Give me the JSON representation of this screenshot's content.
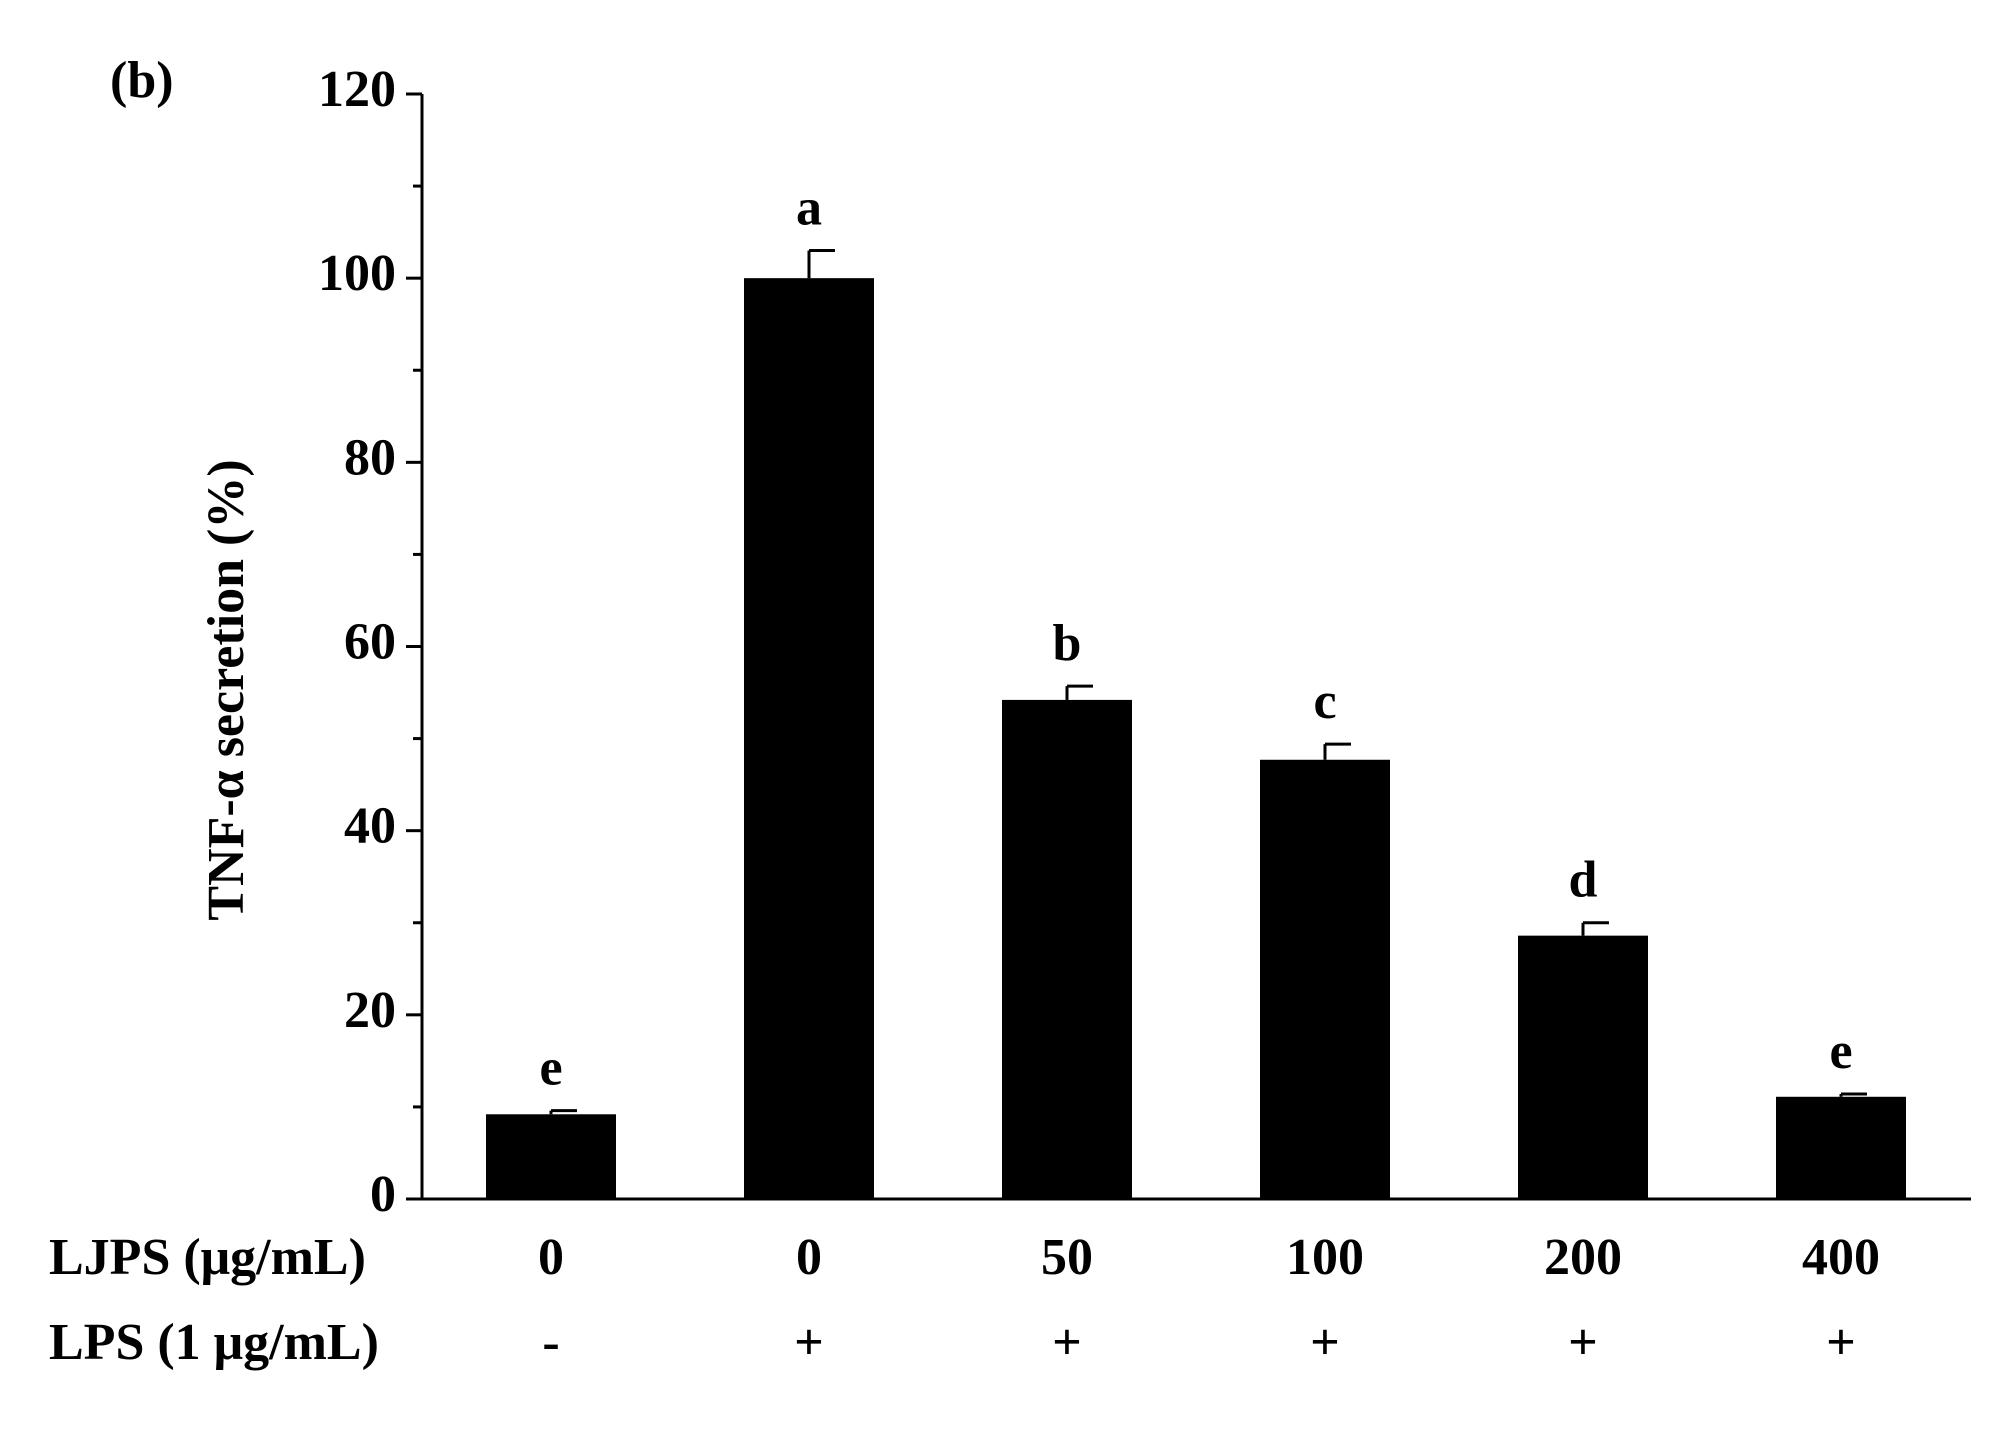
{
  "chart_data": {
    "type": "bar",
    "panel_label": "(b)",
    "y_label": "TNF-α secretion (%)",
    "row_labels": [
      "LJPS (μg/mL)",
      "LPS (1 μg/mL)"
    ],
    "categories": [
      "0",
      "0",
      "50",
      "100",
      "200",
      "400"
    ],
    "lps": [
      "-",
      "+",
      "+",
      "+",
      "+",
      "+"
    ],
    "values": [
      9.2,
      100,
      54.2,
      47.7,
      28.6,
      11.1
    ],
    "errors": [
      0.4,
      3.0,
      1.5,
      1.7,
      1.4,
      0.3
    ],
    "annotations": [
      "e",
      "a",
      "b",
      "c",
      "d",
      "e"
    ],
    "color": "#000000",
    "ylim": [
      0,
      120
    ],
    "yticks": [
      0,
      20,
      40,
      60,
      80,
      100,
      120
    ],
    "yminor": [
      10,
      30,
      50,
      70,
      90,
      110
    ]
  }
}
